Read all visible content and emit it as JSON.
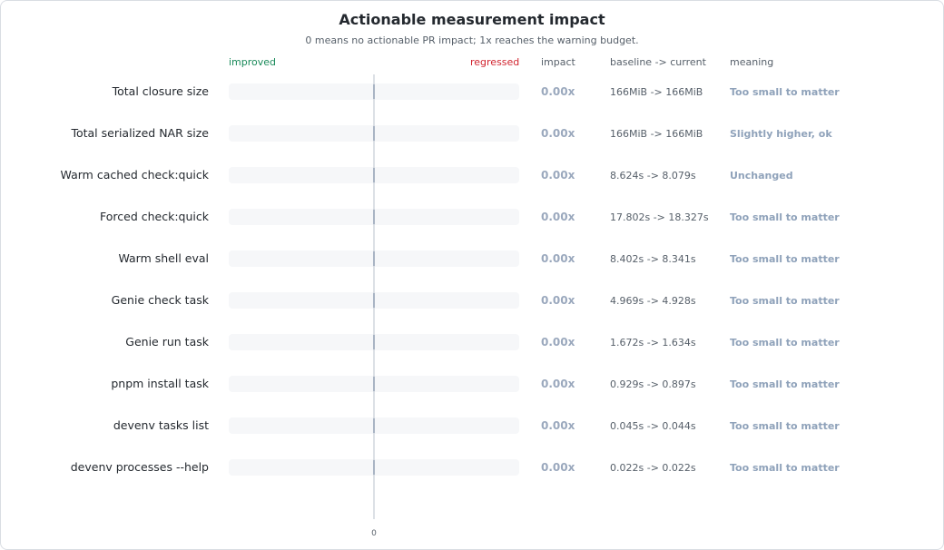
{
  "title": "Actionable measurement impact",
  "subtitle": "0 means no actionable PR impact; 1x reaches the warning budget.",
  "headers": {
    "improved": "improved",
    "regressed": "regressed",
    "impact": "impact",
    "baseline": "baseline -> current",
    "meaning": "meaning"
  },
  "colors": {
    "track": "#f6f7f9",
    "axis": "#b8c0cc",
    "marker": "#9aa8bd",
    "improved": "#1a8a5a",
    "regressed": "#d1242f"
  },
  "chart_data": {
    "type": "bar",
    "title": "Actionable measurement impact",
    "subtitle": "0 means no actionable PR impact; 1x reaches the warning budget.",
    "x_tick_labels": [
      "0"
    ],
    "categories": [
      "Total closure size",
      "Total serialized NAR size",
      "Warm cached check:quick",
      "Forced check:quick",
      "Warm shell eval",
      "Genie check task",
      "Genie run task",
      "pnpm install task",
      "devenv tasks list",
      "devenv processes --help"
    ],
    "values": [
      0,
      0,
      0,
      0,
      0,
      0,
      0,
      0,
      0,
      0
    ],
    "impact_labels": [
      "0.00x",
      "0.00x",
      "0.00x",
      "0.00x",
      "0.00x",
      "0.00x",
      "0.00x",
      "0.00x",
      "0.00x",
      "0.00x"
    ],
    "baseline_current": [
      "166MiB -> 166MiB",
      "166MiB -> 166MiB",
      "8.624s -> 8.079s",
      "17.802s -> 18.327s",
      "8.402s -> 8.341s",
      "4.969s -> 4.928s",
      "1.672s -> 1.634s",
      "0.929s -> 0.897s",
      "0.045s -> 0.044s",
      "0.022s -> 0.022s"
    ],
    "meaning": [
      "Too small to matter",
      "Slightly higher, ok",
      "Unchanged",
      "Too small to matter",
      "Too small to matter",
      "Too small to matter",
      "Too small to matter",
      "Too small to matter",
      "Too small to matter",
      "Too small to matter"
    ],
    "xlim": [
      -1,
      1
    ]
  }
}
